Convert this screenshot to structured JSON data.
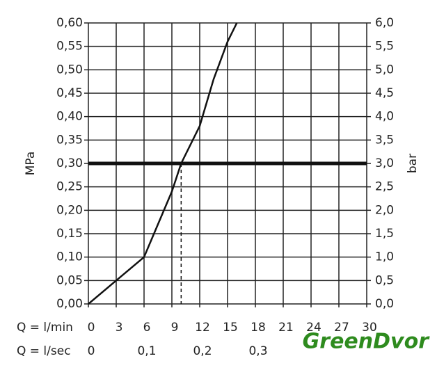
{
  "chart_data": {
    "type": "line",
    "y_label": "MPa",
    "y2_label": "bar",
    "x_label": "Q = l/min",
    "x2_label": "Q = l/sec",
    "x": [
      0,
      3,
      6,
      7.5,
      9,
      10,
      12,
      13.5,
      15,
      16
    ],
    "series": [
      {
        "color": "#111111",
        "values": [
          0,
          0.05,
          0.1,
          0.17,
          0.24,
          0.3,
          0.38,
          0.48,
          0.56,
          0.6
        ]
      }
    ],
    "reference_line": 0.3,
    "dashed_x": 10,
    "xlim": [
      0,
      30
    ],
    "xticks": [
      0,
      3,
      6,
      9,
      12,
      15,
      18,
      21,
      24,
      27,
      30
    ],
    "x2lim": [
      0,
      0.5
    ],
    "x2ticks": [
      0,
      {
        "value": 0.1,
        "label": "0,1"
      },
      {
        "value": 0.2,
        "label": "0,2"
      },
      {
        "value": 0.3,
        "label": "0,3"
      }
    ],
    "ylim": [
      0,
      0.6
    ],
    "yticks": [
      {
        "value": 0,
        "label": "0,00"
      },
      {
        "value": 0.05,
        "label": "0,05"
      },
      {
        "value": 0.1,
        "label": "0,10"
      },
      {
        "value": 0.15,
        "label": "0,15"
      },
      {
        "value": 0.2,
        "label": "0,20"
      },
      {
        "value": 0.25,
        "label": "0,25"
      },
      {
        "value": 0.3,
        "label": "0,30"
      },
      {
        "value": 0.35,
        "label": "0,35"
      },
      {
        "value": 0.4,
        "label": "0,40"
      },
      {
        "value": 0.45,
        "label": "0,45"
      },
      {
        "value": 0.5,
        "label": "0,50"
      },
      {
        "value": 0.55,
        "label": "0,55"
      },
      {
        "value": 0.6,
        "label": "0,60"
      }
    ],
    "y2lim": [
      0,
      6
    ],
    "y2ticks": [
      {
        "value": 0,
        "label": "0,0"
      },
      {
        "value": 0.5,
        "label": "0,5"
      },
      {
        "value": 1,
        "label": "1,0"
      },
      {
        "value": 1.5,
        "label": "1,5"
      },
      {
        "value": 2,
        "label": "2,0"
      },
      {
        "value": 2.5,
        "label": "2,5"
      },
      {
        "value": 3,
        "label": "3,0"
      },
      {
        "value": 3.5,
        "label": "3,5"
      },
      {
        "value": 4,
        "label": "4,0"
      },
      {
        "value": 4.5,
        "label": "4,5"
      },
      {
        "value": 5,
        "label": "5,0"
      },
      {
        "value": 5.5,
        "label": "5,5"
      },
      {
        "value": 6,
        "label": "6,0"
      }
    ],
    "grid": true,
    "watermark": "GreenDvor"
  }
}
